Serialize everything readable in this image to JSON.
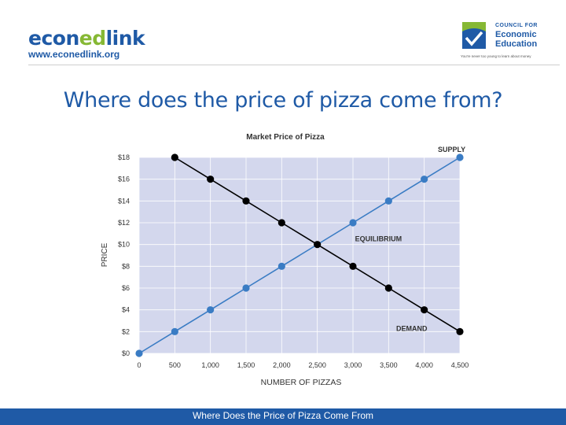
{
  "header": {
    "logo_left": {
      "part1": "econ",
      "part2": "ed",
      "part3": "link",
      "url": "www.econedlink.org"
    },
    "logo_right": {
      "small": "COUNCIL FOR",
      "line1": "Economic",
      "line2": "Education",
      "tagline": "You're never too young to learn about money"
    }
  },
  "slide": {
    "title": "Where does the price of pizza come from?"
  },
  "footer": {
    "text": "Where Does the Price of Pizza Come From"
  },
  "chart_data": {
    "type": "line",
    "title": "Market Price of Pizza",
    "xlabel": "NUMBER OF PIZZAS",
    "ylabel": "PRICE",
    "xlim": [
      0,
      4500
    ],
    "ylim": [
      0,
      18
    ],
    "x_ticks": [
      "0",
      "500",
      "1,000",
      "1,500",
      "2,000",
      "2,500",
      "3,000",
      "3,500",
      "4,000",
      "4,500"
    ],
    "y_ticks": [
      "$0",
      "$2",
      "$4",
      "$6",
      "$8",
      "$10",
      "$12",
      "$14",
      "$16",
      "$18"
    ],
    "grid": true,
    "series": [
      {
        "name": "SUPPLY",
        "color": "#3a7cc4",
        "x": [
          0,
          500,
          1000,
          1500,
          2000,
          3000,
          3500,
          4000,
          4500
        ],
        "y": [
          0,
          2,
          4,
          6,
          8,
          12,
          14,
          16,
          18
        ]
      },
      {
        "name": "DEMAND",
        "color": "#000000",
        "x": [
          500,
          1000,
          1500,
          2000,
          3000,
          3500,
          4000,
          4500
        ],
        "y": [
          18,
          16,
          14,
          12,
          8,
          6,
          4,
          2
        ]
      }
    ],
    "equilibrium": {
      "label": "EQUILIBRIUM",
      "x": 2500,
      "y": 10
    },
    "plot_background": "#d3d7ed"
  }
}
